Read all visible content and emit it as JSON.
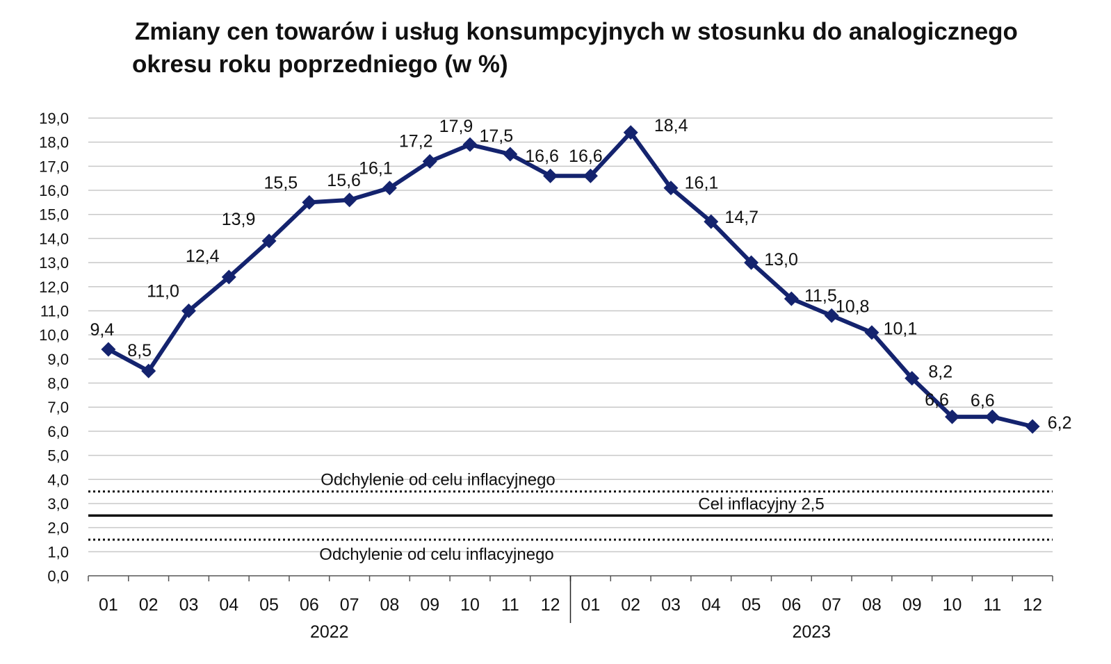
{
  "chart_data": {
    "type": "line",
    "title_lines": [
      "Zmiany cen towarów i usług konsumpcyjnych w stosunku do analogicznego",
      "okresu roku poprzedniego (w %)"
    ],
    "categories": [
      "01",
      "02",
      "03",
      "04",
      "05",
      "06",
      "07",
      "08",
      "09",
      "10",
      "11",
      "12",
      "01",
      "02",
      "03",
      "04",
      "05",
      "06",
      "07",
      "08",
      "09",
      "10",
      "11",
      "12"
    ],
    "groups": [
      {
        "label": "2022",
        "start": 0,
        "end": 11
      },
      {
        "label": "2023",
        "start": 12,
        "end": 23
      }
    ],
    "series": [
      {
        "values": [
          9.4,
          8.5,
          11.0,
          12.4,
          13.9,
          15.5,
          15.6,
          16.1,
          17.2,
          17.9,
          17.5,
          16.6,
          16.6,
          18.4,
          16.1,
          14.7,
          13.0,
          11.5,
          10.8,
          10.1,
          8.2,
          6.6,
          6.6,
          6.2
        ],
        "labels": [
          "9,4",
          "8,5",
          "11,0",
          "12,4",
          "13,9",
          "15,5",
          "15,6",
          "16,1",
          "17,2",
          "17,9",
          "17,5",
          "16,6",
          "16,6",
          "18,4",
          "16,1",
          "14,7",
          "13,0",
          "11,5",
          "10,8",
          "10,1",
          "8,2",
          "6,6",
          "6,6",
          "6,2"
        ],
        "color": "#14236e"
      }
    ],
    "yticks": [
      0,
      1,
      2,
      3,
      4,
      5,
      6,
      7,
      8,
      9,
      10,
      11,
      12,
      13,
      14,
      15,
      16,
      17,
      18,
      19
    ],
    "ytick_labels": [
      "0,0",
      "1,0",
      "2,0",
      "3,0",
      "4,0",
      "5,0",
      "6,0",
      "7,0",
      "8,0",
      "9,0",
      "10,0",
      "11,0",
      "12,0",
      "13,0",
      "14,0",
      "15,0",
      "16,0",
      "17,0",
      "18,0",
      "19,0"
    ],
    "ylim": [
      0,
      19
    ],
    "grid": true,
    "legend": "none",
    "reference_lines": [
      {
        "value": 3.5,
        "style": "dotted",
        "label": "Odchylenie od celu inflacyjnego",
        "label_position": "above"
      },
      {
        "value": 2.5,
        "style": "solid",
        "label": "Cel inflacyjny 2,5",
        "label_position": "above"
      },
      {
        "value": 1.5,
        "style": "dotted",
        "label": "Odchylenie od celu inflacyjnego",
        "label_position": "below"
      }
    ],
    "colors": {
      "series": "#14236e",
      "grid": "#c8c8c8",
      "reference": "#111111",
      "axis": "#555555"
    }
  }
}
